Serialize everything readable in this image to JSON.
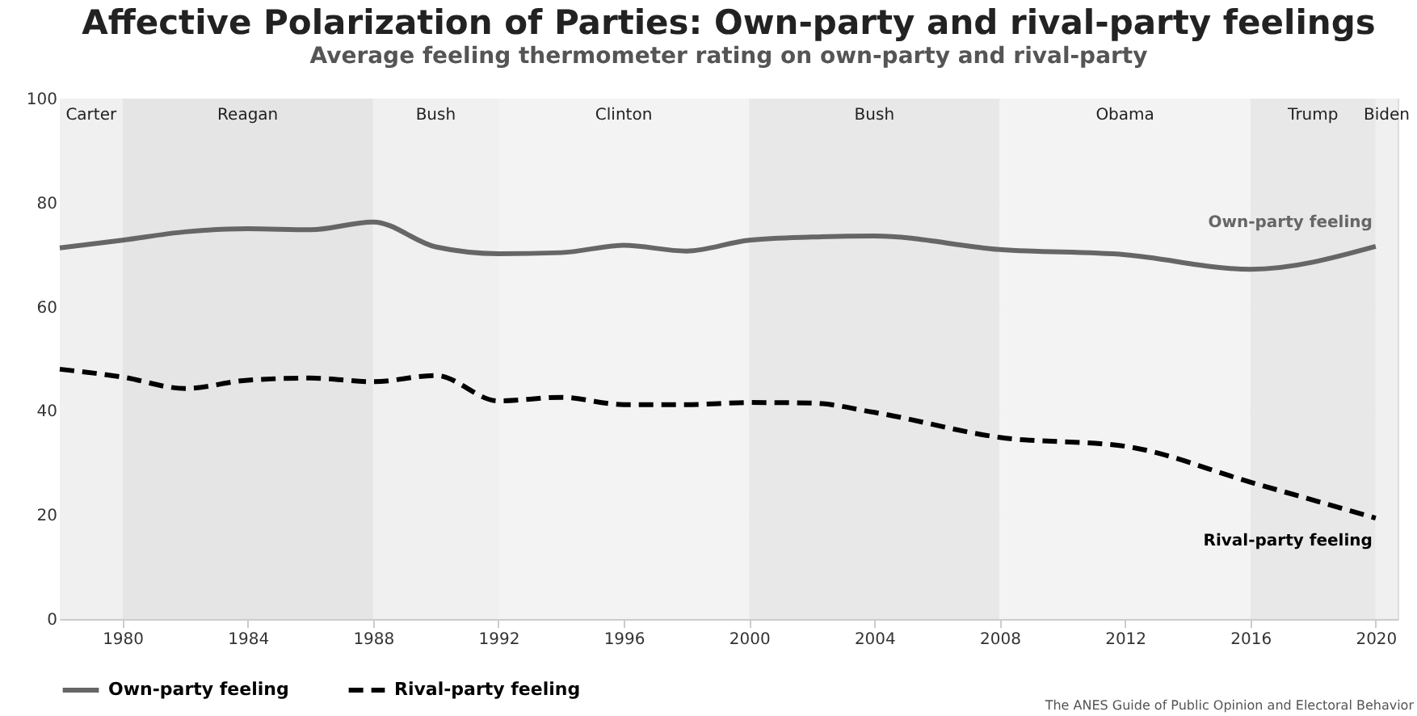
{
  "chart_data": {
    "type": "line",
    "title": "Affective Polarization of Parties: Own-party and rival-party feelings",
    "subtitle": "Average feeling thermometer rating on own-party and rival-party",
    "x": [
      1978,
      1980,
      1982,
      1984,
      1986,
      1988,
      1990,
      1992,
      1994,
      1996,
      1998,
      2000,
      2002,
      2004,
      2008,
      2012,
      2016,
      2020
    ],
    "series": [
      {
        "name": "Own-party feeling",
        "color": "#666666",
        "line_style": "solid",
        "values": [
          71.3,
          72.8,
          74.4,
          75.0,
          74.8,
          76.3,
          71.5,
          70.2,
          70.4,
          71.8,
          70.7,
          72.8,
          73.4,
          73.6,
          71.0,
          70.0,
          67.2,
          71.6
        ]
      },
      {
        "name": "Rival-party feeling",
        "color": "#000000",
        "line_style": "dashed",
        "values": [
          48.0,
          46.5,
          44.3,
          45.9,
          46.3,
          45.6,
          46.8,
          41.9,
          42.6,
          41.2,
          41.2,
          41.6,
          41.5,
          39.7,
          34.9,
          33.2,
          26.3,
          19.4
        ]
      }
    ],
    "xlim": [
      1978,
      2020.7
    ],
    "xticks": [
      1980,
      1984,
      1988,
      1992,
      1996,
      2000,
      2004,
      2008,
      2012,
      2016,
      2020
    ],
    "ylim": [
      0,
      100
    ],
    "yticks": [
      0,
      20,
      40,
      60,
      80,
      100
    ],
    "bands": [
      {
        "axis": "x",
        "from": 1978,
        "to": 1980,
        "label": "Carter",
        "color": "#f0f0f0"
      },
      {
        "axis": "x",
        "from": 1980,
        "to": 1988,
        "label": "Reagan",
        "color": "#e5e5e5"
      },
      {
        "axis": "x",
        "from": 1988,
        "to": 1992,
        "label": "Bush",
        "color": "#f0f0f0"
      },
      {
        "axis": "x",
        "from": 1992,
        "to": 2000,
        "label": "Clinton",
        "color": "#f3f3f3"
      },
      {
        "axis": "x",
        "from": 2000,
        "to": 2008,
        "label": "Bush",
        "color": "#e8e8e8"
      },
      {
        "axis": "x",
        "from": 2008,
        "to": 2016,
        "label": "Obama",
        "color": "#f3f3f3"
      },
      {
        "axis": "x",
        "from": 2016,
        "to": 2020,
        "label": "Trump",
        "color": "#e8e8e8"
      },
      {
        "axis": "x",
        "from": 2020,
        "to": 2020.7,
        "label": "Biden",
        "color": "#f0f0f0"
      }
    ],
    "annotations": [
      "Own-party feeling",
      "Rival-party feeling",
      "The ANES Guide of Public Opinion and Electoral Behavior"
    ],
    "grid": "y",
    "legend": "bottom"
  }
}
